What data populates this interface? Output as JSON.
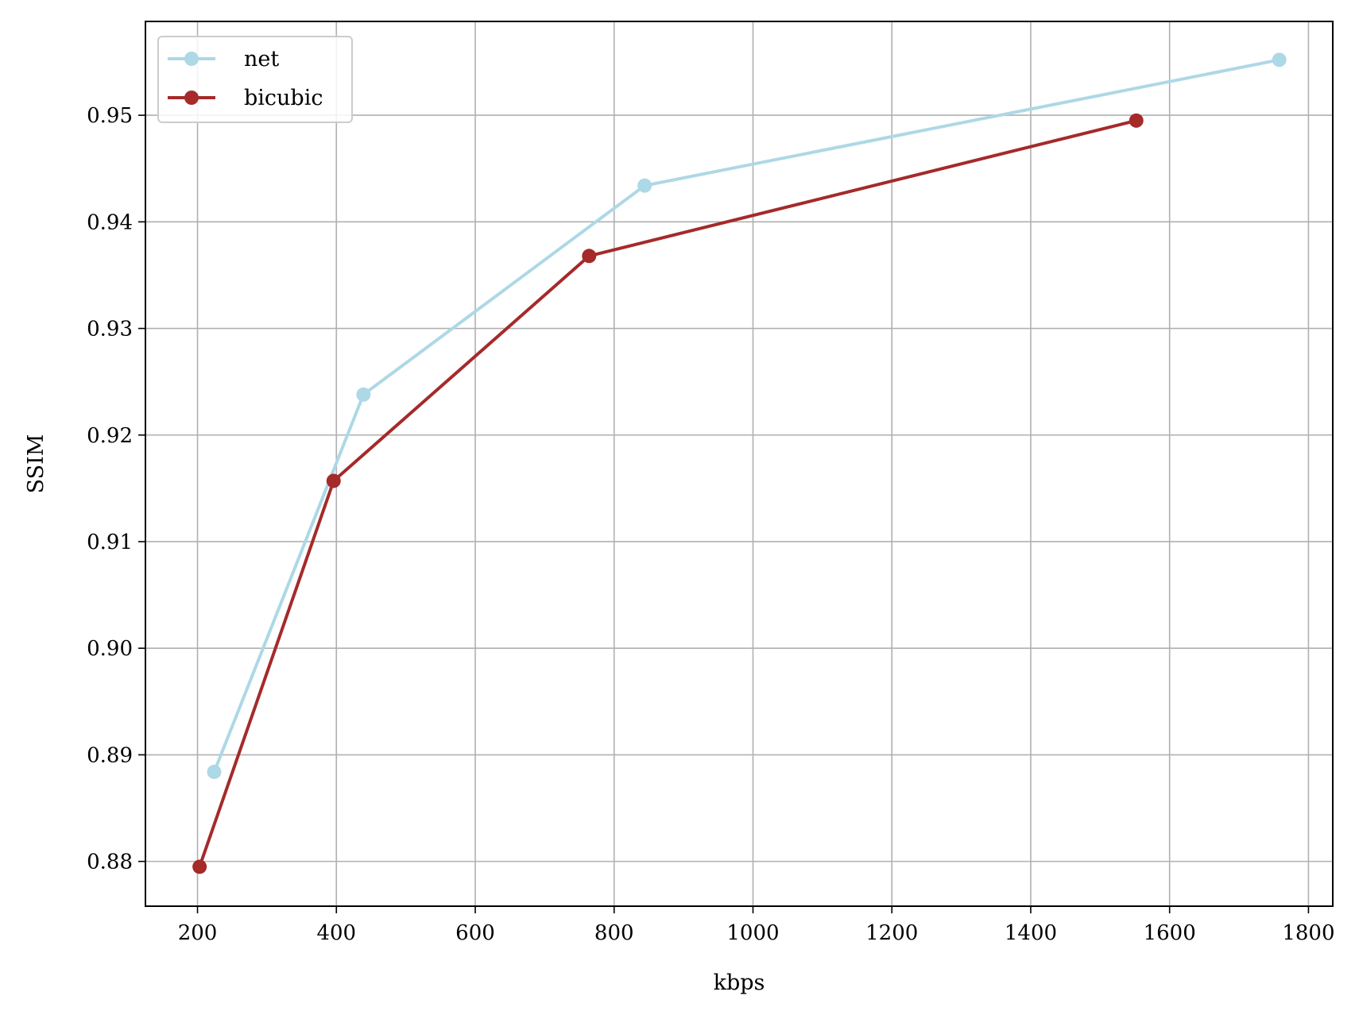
{
  "chart_data": {
    "type": "line",
    "title": "",
    "xlabel": "kbps",
    "ylabel": "SSIM",
    "xlim": [
      125,
      1835
    ],
    "ylim": [
      0.8758,
      0.9588
    ],
    "xticks": [
      200,
      400,
      600,
      800,
      1000,
      1200,
      1400,
      1600,
      1800
    ],
    "yticks": [
      0.88,
      0.89,
      0.9,
      0.91,
      0.92,
      0.93,
      0.94,
      0.95
    ],
    "ytick_labels": [
      "0.88",
      "0.89",
      "0.90",
      "0.91",
      "0.92",
      "0.93",
      "0.94",
      "0.95"
    ],
    "grid": true,
    "legend_position": "upper-left",
    "series": [
      {
        "name": "net",
        "color": "#add8e6",
        "x": [
          224,
          439,
          844,
          1758
        ],
        "y": [
          0.8884,
          0.9238,
          0.9434,
          0.9552
        ]
      },
      {
        "name": "bicubic",
        "color": "#a52a2a",
        "x": [
          203,
          396,
          764,
          1552
        ],
        "y": [
          0.8795,
          0.9157,
          0.9368,
          0.9495
        ]
      }
    ]
  }
}
